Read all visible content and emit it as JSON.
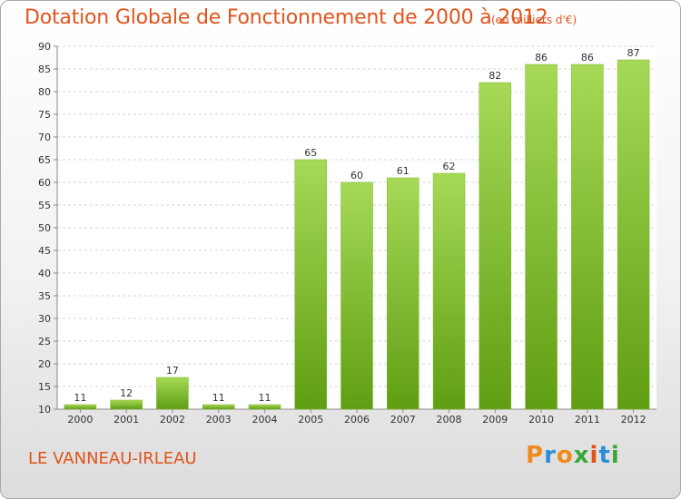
{
  "title": "Dotation Globale de Fonctionnement de 2000 à 2012",
  "unit_note": "(en milliers d'€)",
  "place": "LE VANNEAU-IRLEAU",
  "brand": {
    "letters": [
      "P",
      "r",
      "o",
      "x",
      "i",
      "t",
      "i"
    ],
    "colors": [
      "#f08a1c",
      "#2b8fd6",
      "#f08a1c",
      "#3aa835",
      "#e2531c",
      "#2b8fd6",
      "#3aa835"
    ]
  },
  "colors": {
    "bar_light": "#a6d957",
    "bar_dark": "#5f9e12",
    "accent": "#e2531c"
  },
  "chart_data": {
    "type": "bar",
    "title": "Dotation Globale de Fonctionnement de 2000 à 2012",
    "xlabel": "",
    "ylabel": "",
    "categories": [
      "2000",
      "2001",
      "2002",
      "2003",
      "2004",
      "2005",
      "2006",
      "2007",
      "2008",
      "2009",
      "2010",
      "2011",
      "2012"
    ],
    "values": [
      11,
      12,
      17,
      11,
      11,
      65,
      60,
      61,
      62,
      82,
      86,
      86,
      87
    ],
    "ylim": [
      10,
      90
    ],
    "yticks": [
      10,
      15,
      20,
      25,
      30,
      35,
      40,
      45,
      50,
      55,
      60,
      65,
      70,
      75,
      80,
      85,
      90
    ],
    "grid": true,
    "legend": "none"
  }
}
